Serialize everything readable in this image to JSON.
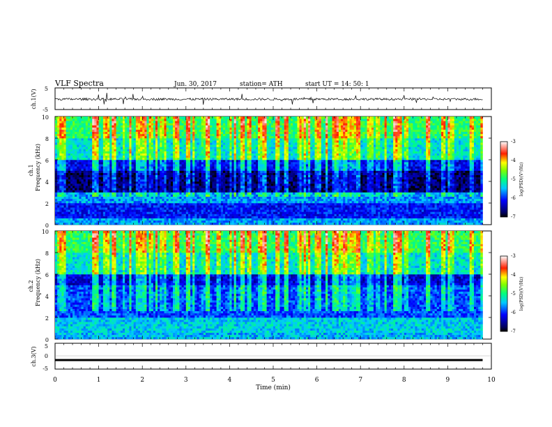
{
  "header": {
    "title": "VLF  Spectra",
    "date": "Jun. 30, 2017",
    "station": "station= ATH",
    "start": "start  UT  =    14: 50: 1"
  },
  "chart_data": [
    {
      "type": "line",
      "id": "ch1-waveform",
      "ylabel": "ch.1(V)",
      "ylim": [
        -5,
        5
      ],
      "y_ticks": [
        "5",
        "-5"
      ],
      "x_range_min": [
        0,
        9.8
      ],
      "baseline_v": -0.2,
      "noise_amplitude_v": 1.0,
      "spike_amplitude_v": 3.0
    },
    {
      "type": "heatmap",
      "id": "ch1-spectrogram",
      "ylabel_top": "ch.1",
      "ylabel": "Frequency  (kHz)",
      "ylim": [
        0,
        10
      ],
      "y_ticks": [
        "0",
        "2",
        "4",
        "6",
        "8",
        "10"
      ],
      "x_range_min": [
        0,
        9.8
      ],
      "colorbar": {
        "label": "log(PSD)(V²/Hz)",
        "range": [
          -7,
          -3
        ],
        "ticks": [
          "-3",
          "-4",
          "-5",
          "-6",
          "-7"
        ]
      },
      "levels_by_band": [
        {
          "f_from": 0.0,
          "f_to": 0.5,
          "log_psd": -5.6
        },
        {
          "f_from": 0.5,
          "f_to": 2.0,
          "log_psd": -6.1
        },
        {
          "f_from": 2.0,
          "f_to": 3.0,
          "log_psd": -5.6
        },
        {
          "f_from": 3.0,
          "f_to": 5.0,
          "log_psd": -6.7
        },
        {
          "f_from": 5.0,
          "f_to": 6.0,
          "log_psd": -6.2
        },
        {
          "f_from": 6.0,
          "f_to": 8.0,
          "log_psd": -5.3
        },
        {
          "f_from": 8.0,
          "f_to": 10.0,
          "log_psd": -4.9
        }
      ]
    },
    {
      "type": "heatmap",
      "id": "ch2-spectrogram",
      "ylabel_top": "ch.2",
      "ylabel": "Frequency  (kHz)",
      "ylim": [
        0,
        10
      ],
      "y_ticks": [
        "0",
        "2",
        "4",
        "6",
        "8",
        "10"
      ],
      "x_range_min": [
        0,
        9.8
      ],
      "colorbar": {
        "label": "log(PSD)(V²/Hz)",
        "range": [
          -7,
          -3
        ],
        "ticks": [
          "-3",
          "-4",
          "-5",
          "-6",
          "-7"
        ]
      },
      "levels_by_band": [
        {
          "f_from": 0.0,
          "f_to": 0.5,
          "log_psd": -5.5
        },
        {
          "f_from": 0.5,
          "f_to": 2.0,
          "log_psd": -5.4
        },
        {
          "f_from": 2.0,
          "f_to": 3.0,
          "log_psd": -5.9
        },
        {
          "f_from": 3.0,
          "f_to": 5.0,
          "log_psd": -5.9
        },
        {
          "f_from": 5.0,
          "f_to": 6.0,
          "log_psd": -6.3
        },
        {
          "f_from": 6.0,
          "f_to": 8.0,
          "log_psd": -5.3
        },
        {
          "f_from": 8.0,
          "f_to": 10.0,
          "log_psd": -4.9
        }
      ]
    },
    {
      "type": "line",
      "id": "ch3-waveform",
      "ylabel": "ch.3(V)",
      "ylim": [
        -5,
        5
      ],
      "y_ticks": [
        "5",
        "0",
        "-5"
      ],
      "x_range_min": [
        0,
        9.8
      ],
      "baseline_v": -1.5,
      "noise_amplitude_v": 0.0,
      "spike_amplitude_v": 0.0
    }
  ],
  "x_axis": {
    "label": "Time  (min)",
    "range": [
      0,
      10
    ],
    "ticks": [
      "0",
      "1",
      "2",
      "3",
      "4",
      "5",
      "6",
      "7",
      "8",
      "9",
      "10"
    ]
  }
}
